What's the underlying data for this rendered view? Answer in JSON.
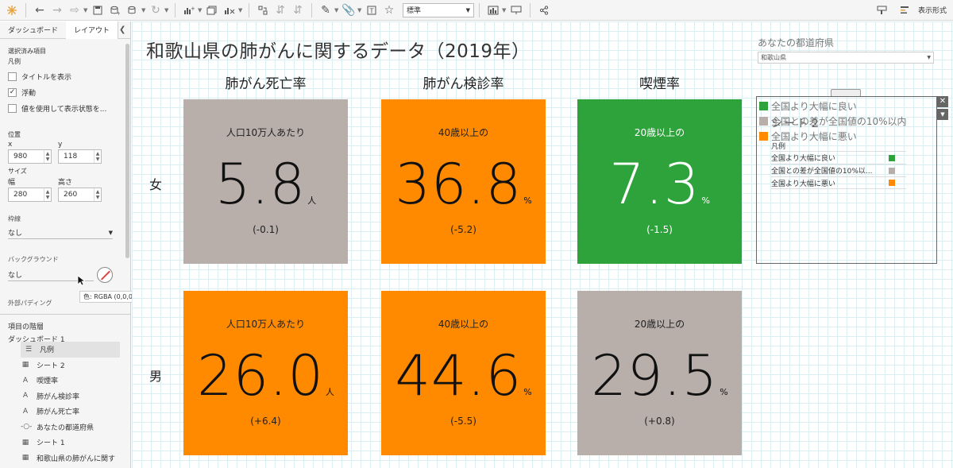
{
  "colors": {
    "gray": "#b8aeaa",
    "orange": "#ff8a00",
    "green": "#2fa33b"
  },
  "toolbar": {
    "format_select": "標準",
    "show_format_label": "表示形式"
  },
  "left_panel": {
    "tab_dashboard": "ダッシュボード",
    "tab_layout": "レイアウト",
    "selected_section": "選択済み項目",
    "selected_item": "凡例",
    "show_title": "タイトルを表示",
    "floating": "浮動",
    "show_by_value": "値を使用して表示状態を...",
    "position_label": "位置",
    "x_label": "x",
    "y_label": "y",
    "x_value": "980",
    "y_value": "118",
    "size_label": "サイズ",
    "width_label": "幅",
    "height_label": "高さ",
    "width_value": "280",
    "height_value": "260",
    "border_label": "枠線",
    "border_value": "なし",
    "background_label": "バックグラウンド",
    "background_value": "なし",
    "tooltip": "色: RGBA (0,0,0,0)",
    "outer_padding": "外部パディング",
    "hierarchy_label": "項目の階層",
    "dashboard_name": "ダッシュボード 1",
    "tree": [
      {
        "icon": "legend-icon",
        "label": "凡例"
      },
      {
        "icon": "sheet-icon",
        "label": "シート 2"
      },
      {
        "icon": "text-icon",
        "label": "喫煙率"
      },
      {
        "icon": "text-icon",
        "label": "肺がん検診率"
      },
      {
        "icon": "text-icon",
        "label": "肺がん死亡率"
      },
      {
        "icon": "parameter-icon",
        "label": "あなたの都道府県"
      },
      {
        "icon": "sheet-icon",
        "label": "シート 1"
      },
      {
        "icon": "sheet-icon",
        "label": "和歌山県の肺がんに関す"
      }
    ]
  },
  "dashboard": {
    "title": "和歌山県の肺がんに関するデータ（2019年）",
    "columns": [
      "肺がん死亡率",
      "肺がん検診率",
      "喫煙率"
    ],
    "rows": [
      "女",
      "男"
    ],
    "tiles": [
      {
        "sub": "人口10万人あたり",
        "value": "5.8",
        "unit": "人",
        "diff": "(-0.1)",
        "color": "gray"
      },
      {
        "sub": "40歳以上の",
        "value": "36.8",
        "unit": "%",
        "diff": "(-5.2)",
        "color": "orange"
      },
      {
        "sub": "20歳以上の",
        "value": "7.3",
        "unit": "%",
        "diff": "(-1.5)",
        "color": "green"
      },
      {
        "sub": "人口10万人あたり",
        "value": "26.0",
        "unit": "人",
        "diff": "(+6.4)",
        "color": "orange"
      },
      {
        "sub": "40歳以上の",
        "value": "44.6",
        "unit": "%",
        "diff": "(-5.5)",
        "color": "orange"
      },
      {
        "sub": "20歳以上の",
        "value": "29.5",
        "unit": "%",
        "diff": "(+0.8)",
        "color": "gray"
      }
    ],
    "pref_label": "あなたの都道府県",
    "pref_value": "和歌山県",
    "legend_top": [
      {
        "label": "全国より大幅に良い",
        "color": "green"
      },
      {
        "label": "全国との差が全国値の10%以内",
        "color": "gray"
      },
      {
        "label": "全国より大幅に悪い",
        "color": "orange"
      }
    ],
    "legend_sheet": "シート２",
    "legend_inner_title": "凡例",
    "legend_inner": [
      {
        "label": "全国より大幅に良い",
        "color": "green"
      },
      {
        "label": "全国との差が全国値の10%以...",
        "color": "gray"
      },
      {
        "label": "全国より大幅に悪い",
        "color": "orange"
      }
    ]
  }
}
